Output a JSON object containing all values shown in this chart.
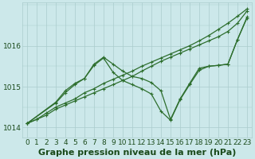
{
  "xlabel": "Graphe pression niveau de la mer (hPa)",
  "ylabel": "",
  "background_color": "#cce8ea",
  "grid_color": "#aacccc",
  "line_color": "#2d6e2d",
  "xlim": [
    -0.5,
    23.5
  ],
  "ylim": [
    1013.75,
    1017.05
  ],
  "yticks": [
    1014,
    1015,
    1016
  ],
  "xticks": [
    0,
    1,
    2,
    3,
    4,
    5,
    6,
    7,
    8,
    9,
    10,
    11,
    12,
    13,
    14,
    15,
    16,
    17,
    18,
    19,
    20,
    21,
    22,
    23
  ],
  "series": [
    {
      "x": [
        0,
        1,
        2,
        3,
        4,
        5,
        6,
        7,
        8,
        9,
        10,
        11,
        12,
        13,
        14,
        15,
        16,
        17,
        18,
        19,
        20,
        21,
        22,
        23
      ],
      "y": [
        1014.1,
        1014.2,
        1014.3,
        1014.45,
        1014.55,
        1014.65,
        1014.75,
        1014.85,
        1014.95,
        1015.05,
        1015.15,
        1015.25,
        1015.38,
        1015.5,
        1015.62,
        1015.72,
        1015.82,
        1015.92,
        1016.02,
        1016.12,
        1016.22,
        1016.35,
        1016.55,
        1016.85
      ]
    },
    {
      "x": [
        0,
        1,
        2,
        3,
        4,
        5,
        6,
        7,
        8,
        9,
        10,
        11,
        12,
        13,
        14,
        15,
        16,
        17,
        18,
        19,
        20,
        21,
        22,
        23
      ],
      "y": [
        1014.1,
        1014.2,
        1014.35,
        1014.5,
        1014.6,
        1014.7,
        1014.85,
        1014.95,
        1015.08,
        1015.18,
        1015.28,
        1015.38,
        1015.5,
        1015.6,
        1015.7,
        1015.8,
        1015.9,
        1016.0,
        1016.12,
        1016.25,
        1016.4,
        1016.55,
        1016.72,
        1016.9
      ]
    },
    {
      "x": [
        0,
        3,
        4,
        5,
        6,
        7,
        8,
        9,
        10,
        11,
        12,
        13,
        14,
        15,
        16,
        17,
        18,
        19,
        20,
        21,
        22,
        23
      ],
      "y": [
        1014.1,
        1014.6,
        1014.85,
        1015.05,
        1015.2,
        1015.55,
        1015.72,
        1015.55,
        1015.38,
        1015.25,
        1015.2,
        1015.1,
        1014.9,
        1014.2,
        1014.7,
        1015.08,
        1015.45,
        1015.5,
        1015.52,
        1015.55,
        1016.15,
        1016.7
      ]
    },
    {
      "x": [
        0,
        3,
        4,
        5,
        6,
        7,
        8,
        9,
        10,
        11,
        12,
        13,
        14,
        15,
        16,
        17,
        18,
        19,
        20,
        21,
        22,
        23
      ],
      "y": [
        1014.1,
        1014.62,
        1014.9,
        1015.08,
        1015.2,
        1015.52,
        1015.7,
        1015.35,
        1015.15,
        1015.05,
        1014.95,
        1014.82,
        1014.4,
        1014.18,
        1014.68,
        1015.05,
        1015.4,
        1015.5,
        1015.52,
        1015.55,
        1016.15,
        1016.68
      ]
    }
  ],
  "xlabel_fontsize": 8,
  "tick_fontsize": 6.5,
  "xlabel_color": "#1a4a1a",
  "tick_color": "#1a4a1a",
  "marker_size": 3,
  "linewidth": 0.9
}
